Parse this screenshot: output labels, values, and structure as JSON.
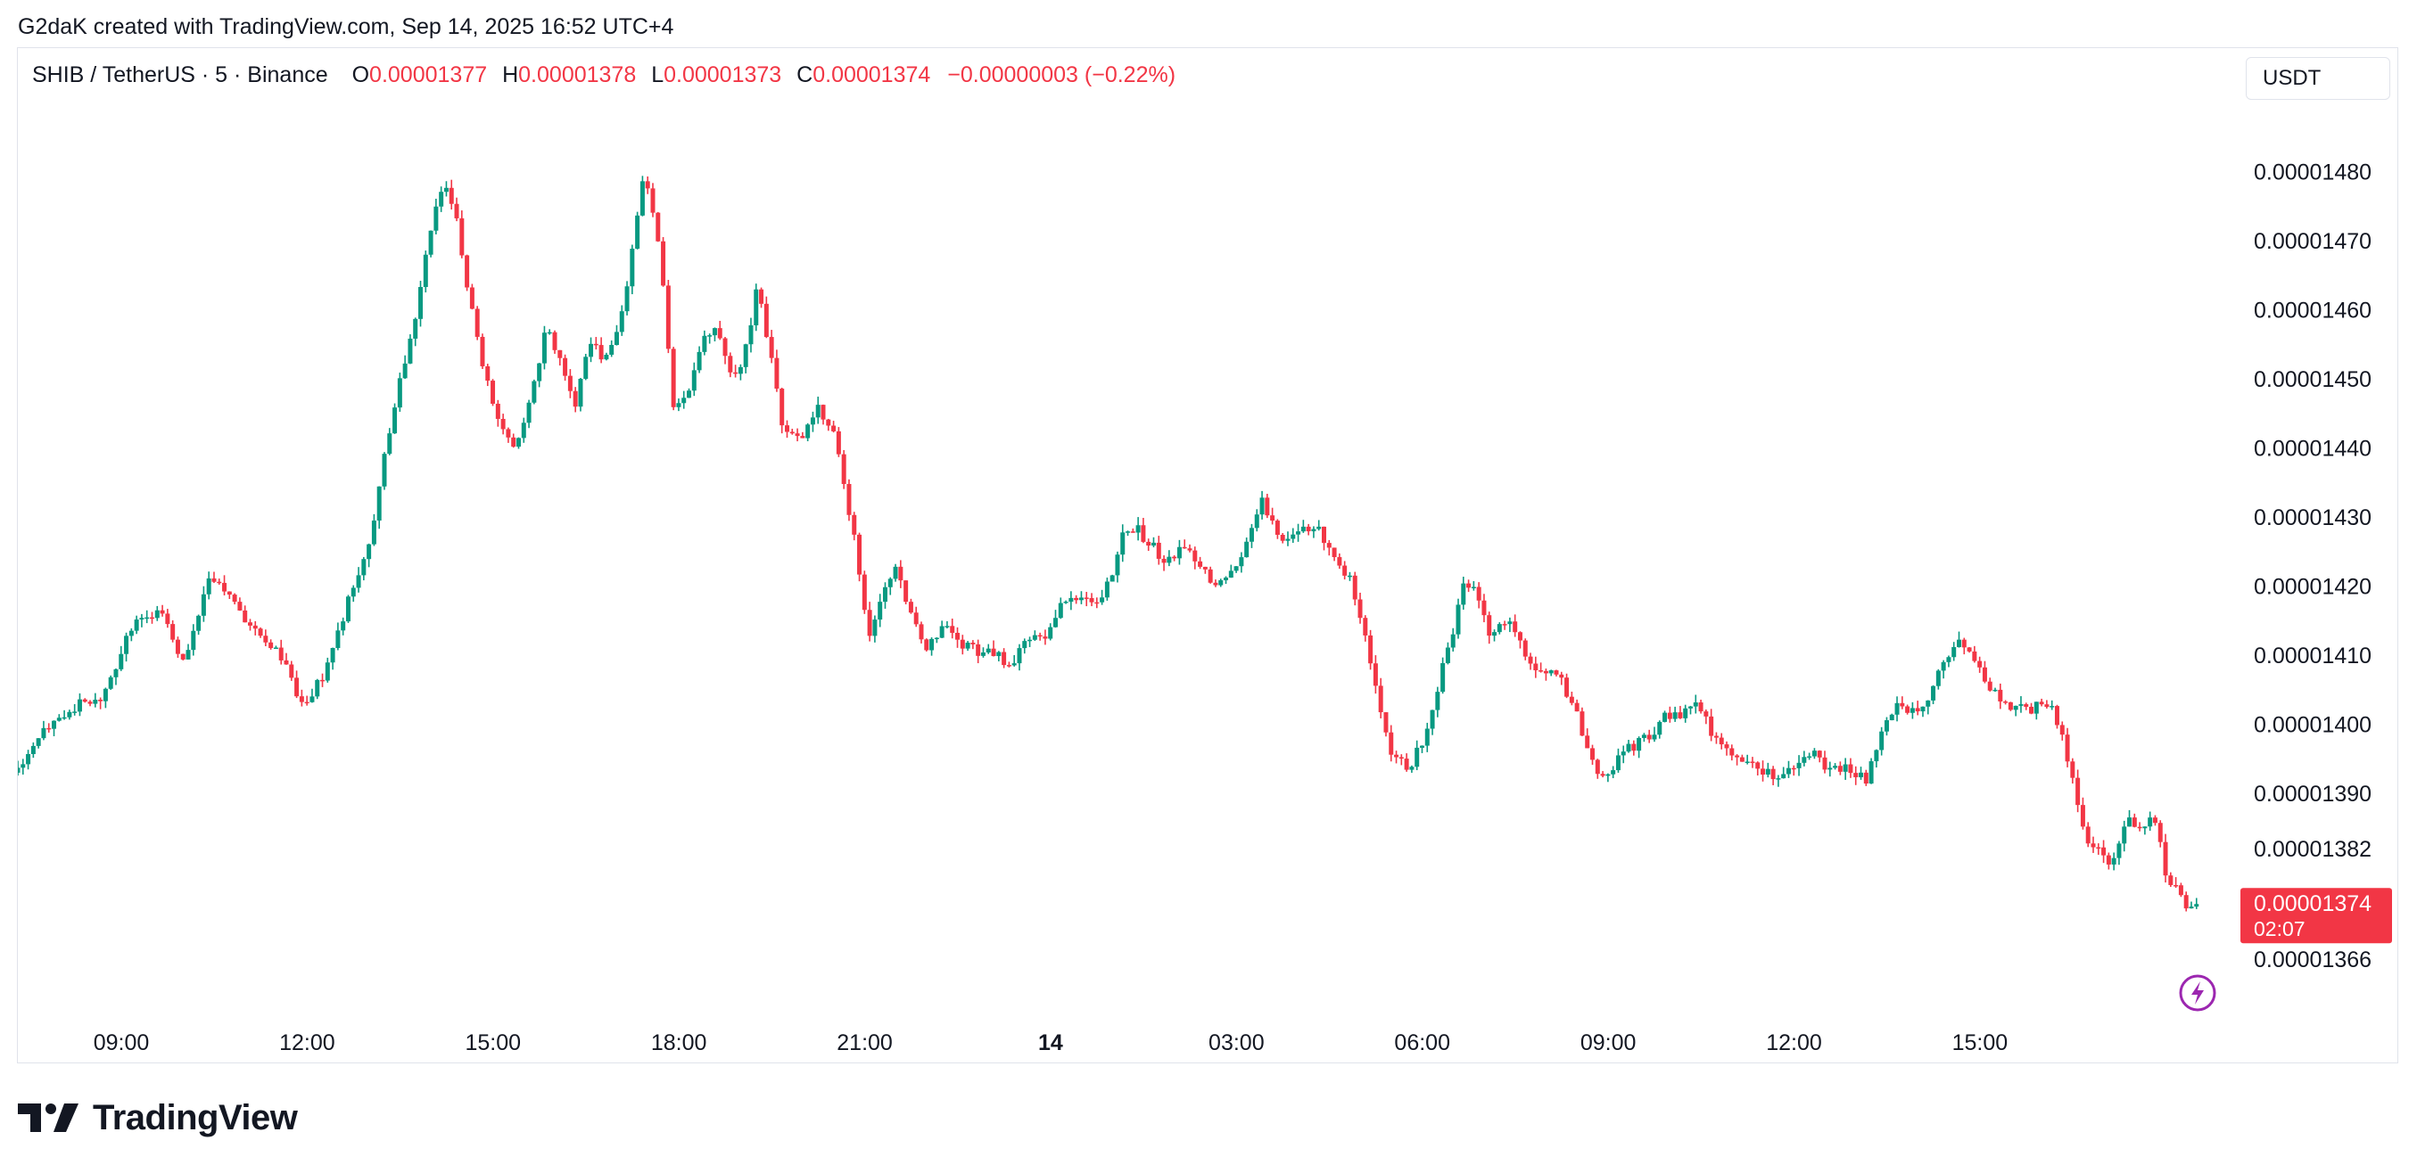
{
  "attribution": "G2daK created with TradingView.com, Sep 14, 2025 16:52 UTC+4",
  "legend": {
    "symbol": "SHIB / TetherUS · 5 · Binance",
    "open_label": "O",
    "open": "0.00001377",
    "high_label": "H",
    "high": "0.00001378",
    "low_label": "L",
    "low": "0.00001373",
    "close_label": "C",
    "close": "0.00001374",
    "change": "−0.00000003 (−0.22%)"
  },
  "currency_button": "USDT",
  "logo_text": "TradingView",
  "logo_icon": "tradingview-logo-icon",
  "colors": {
    "up": "#089981",
    "down": "#f23645",
    "text": "#131722",
    "border": "#e0e3eb",
    "bolt": "#9c27b0"
  },
  "chart_data": {
    "type": "candlestick",
    "x_ticks": [
      "09:00",
      "12:00",
      "15:00",
      "18:00",
      "21:00",
      "14",
      "03:00",
      "06:00",
      "09:00",
      "12:00",
      "15:00"
    ],
    "x_tick_positions": [
      9,
      12,
      15,
      18,
      21,
      24,
      27,
      30,
      33,
      36,
      39
    ],
    "x_bold_tick": "14",
    "x_range": [
      7.33,
      42.5
    ],
    "y_ticks": [
      "0.00001480",
      "0.00001470",
      "0.00001460",
      "0.00001450",
      "0.00001440",
      "0.00001430",
      "0.00001420",
      "0.00001410",
      "0.00001400",
      "0.00001390",
      "0.00001382",
      "0.00001366"
    ],
    "y_tick_values": [
      1.48e-05,
      1.47e-05,
      1.46e-05,
      1.45e-05,
      1.44e-05,
      1.43e-05,
      1.42e-05,
      1.41e-05,
      1.4e-05,
      1.39e-05,
      1.382e-05,
      1.366e-05
    ],
    "y_range": [
      1.361e-05,
      1.49e-05
    ],
    "last_price": "0.00001374",
    "last_price_value": 1.374e-05,
    "countdown": "02:07",
    "price_path": [
      [
        7.33,
        1393.0
      ],
      [
        7.8,
        1398.5
      ],
      [
        8.3,
        1402.5
      ],
      [
        8.75,
        1404.0
      ],
      [
        9.0,
        1408.5
      ],
      [
        9.3,
        1415.0
      ],
      [
        9.7,
        1416.5
      ],
      [
        10.1,
        1409.0
      ],
      [
        10.5,
        1421.0
      ],
      [
        10.85,
        1418.5
      ],
      [
        11.2,
        1413.5
      ],
      [
        11.6,
        1411.0
      ],
      [
        12.0,
        1402.5
      ],
      [
        12.4,
        1408.0
      ],
      [
        12.75,
        1418.0
      ],
      [
        13.1,
        1427.0
      ],
      [
        13.35,
        1440.0
      ],
      [
        13.6,
        1450.5
      ],
      [
        13.85,
        1460.0
      ],
      [
        14.1,
        1472.5
      ],
      [
        14.3,
        1478.5
      ],
      [
        14.5,
        1473.0
      ],
      [
        14.7,
        1462.0
      ],
      [
        14.9,
        1452.0
      ],
      [
        15.2,
        1443.5
      ],
      [
        15.45,
        1440.0
      ],
      [
        15.7,
        1447.5
      ],
      [
        15.95,
        1458.0
      ],
      [
        16.2,
        1451.5
      ],
      [
        16.4,
        1446.0
      ],
      [
        16.65,
        1455.0
      ],
      [
        16.9,
        1453.0
      ],
      [
        17.2,
        1460.5
      ],
      [
        17.35,
        1470.5
      ],
      [
        17.5,
        1479.5
      ],
      [
        17.7,
        1473.0
      ],
      [
        17.85,
        1461.5
      ],
      [
        18.0,
        1446.0
      ],
      [
        18.2,
        1447.5
      ],
      [
        18.45,
        1455.0
      ],
      [
        18.7,
        1457.5
      ],
      [
        18.95,
        1449.0
      ],
      [
        19.2,
        1455.5
      ],
      [
        19.35,
        1464.5
      ],
      [
        19.55,
        1454.0
      ],
      [
        19.75,
        1443.5
      ],
      [
        20.05,
        1441.5
      ],
      [
        20.3,
        1446.0
      ],
      [
        20.55,
        1443.0
      ],
      [
        20.7,
        1437.0
      ],
      [
        20.95,
        1425.0
      ],
      [
        21.15,
        1412.5
      ],
      [
        21.35,
        1418.5
      ],
      [
        21.6,
        1422.5
      ],
      [
        21.85,
        1415.5
      ],
      [
        22.1,
        1410.5
      ],
      [
        22.35,
        1415.0
      ],
      [
        22.65,
        1411.5
      ],
      [
        22.95,
        1410.5
      ],
      [
        23.2,
        1410.0
      ],
      [
        23.45,
        1408.5
      ],
      [
        23.7,
        1412.0
      ],
      [
        24.0,
        1412.5
      ],
      [
        24.2,
        1417.0
      ],
      [
        24.55,
        1418.0
      ],
      [
        24.85,
        1418.0
      ],
      [
        25.1,
        1422.0
      ],
      [
        25.25,
        1428.0
      ],
      [
        25.45,
        1428.5
      ],
      [
        25.75,
        1425.5
      ],
      [
        25.95,
        1423.0
      ],
      [
        26.25,
        1426.0
      ],
      [
        26.55,
        1422.0
      ],
      [
        26.85,
        1420.0
      ],
      [
        27.05,
        1422.5
      ],
      [
        27.3,
        1427.0
      ],
      [
        27.5,
        1432.5
      ],
      [
        27.8,
        1427.0
      ],
      [
        28.05,
        1427.5
      ],
      [
        28.35,
        1429.0
      ],
      [
        28.6,
        1424.5
      ],
      [
        28.95,
        1420.5
      ],
      [
        29.15,
        1413.5
      ],
      [
        29.35,
        1405.0
      ],
      [
        29.55,
        1396.5
      ],
      [
        29.85,
        1393.5
      ],
      [
        30.1,
        1397.5
      ],
      [
        30.3,
        1404.5
      ],
      [
        30.55,
        1412.5
      ],
      [
        30.75,
        1421.0
      ],
      [
        30.95,
        1419.5
      ],
      [
        31.15,
        1413.5
      ],
      [
        31.45,
        1415.5
      ],
      [
        31.75,
        1410.5
      ],
      [
        31.95,
        1407.5
      ],
      [
        32.3,
        1407.0
      ],
      [
        32.55,
        1402.0
      ],
      [
        32.75,
        1396.0
      ],
      [
        32.95,
        1391.5
      ],
      [
        33.15,
        1394.0
      ],
      [
        33.4,
        1396.5
      ],
      [
        33.7,
        1398.0
      ],
      [
        34.0,
        1401.0
      ],
      [
        34.25,
        1401.5
      ],
      [
        34.55,
        1403.0
      ],
      [
        34.8,
        1398.0
      ],
      [
        35.1,
        1395.0
      ],
      [
        35.35,
        1394.0
      ],
      [
        35.6,
        1393.0
      ],
      [
        35.85,
        1392.5
      ],
      [
        36.1,
        1394.5
      ],
      [
        36.4,
        1396.0
      ],
      [
        36.65,
        1393.5
      ],
      [
        36.95,
        1394.0
      ],
      [
        37.25,
        1392.0
      ],
      [
        37.5,
        1399.0
      ],
      [
        37.75,
        1402.5
      ],
      [
        37.95,
        1402.0
      ],
      [
        38.25,
        1403.0
      ],
      [
        38.45,
        1408.0
      ],
      [
        38.7,
        1412.5
      ],
      [
        38.9,
        1410.0
      ],
      [
        39.15,
        1407.0
      ],
      [
        39.35,
        1404.0
      ],
      [
        39.65,
        1402.5
      ],
      [
        39.9,
        1402.0
      ],
      [
        40.2,
        1403.5
      ],
      [
        40.4,
        1398.5
      ],
      [
        40.6,
        1391.0
      ],
      [
        40.8,
        1383.0
      ],
      [
        41.05,
        1381.0
      ],
      [
        41.25,
        1380.0
      ],
      [
        41.45,
        1386.0
      ],
      [
        41.7,
        1385.5
      ],
      [
        41.9,
        1387.0
      ],
      [
        42.1,
        1378.0
      ],
      [
        42.35,
        1374.5
      ],
      [
        42.5,
        1373.0
      ]
    ],
    "price_path_unit": "1e-8 USDT",
    "bolt_icon": "lightning-bolt-icon"
  }
}
